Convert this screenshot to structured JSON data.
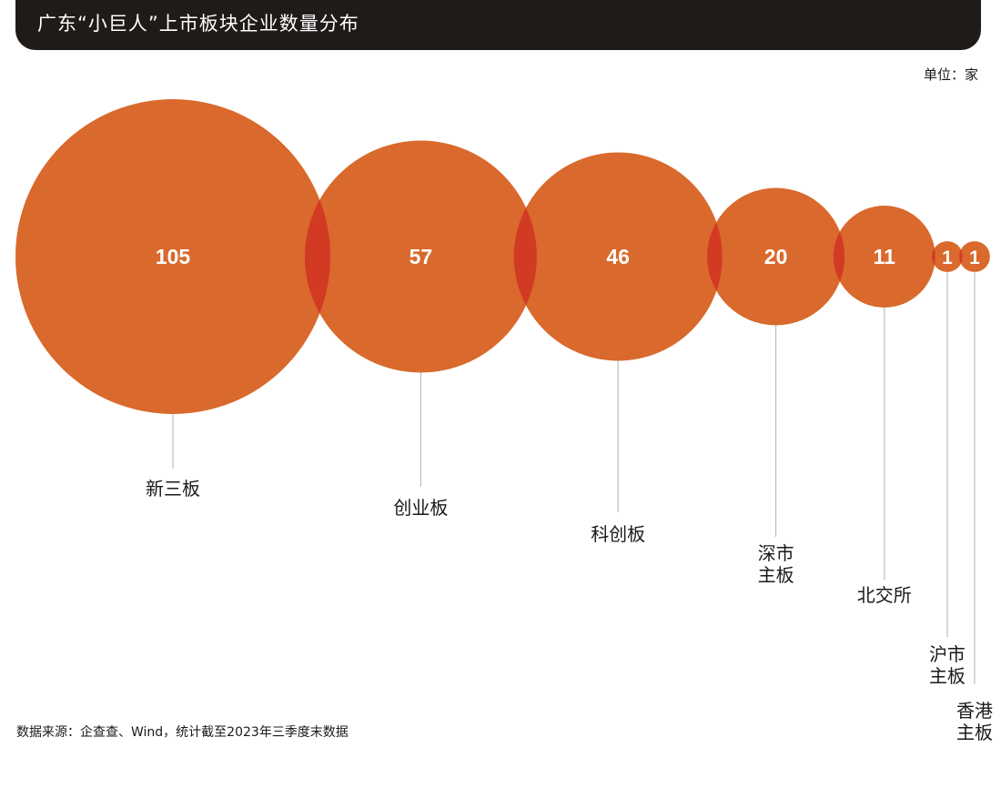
{
  "title": "广东“小巨人”上市板块企业数量分布",
  "unit": "单位：家",
  "source": "数据来源：企查查、Wind，统计截至2023年三季度末数据",
  "colors": {
    "bubble": "#d9692c",
    "overlap": "#d33a24",
    "leader_line": "#bdbdbd",
    "value_text": "#ffffff",
    "category_text": "#1a1a1a",
    "title_bar": "#1e1b19"
  },
  "chart_data": {
    "type": "bubble",
    "categories": [
      [
        "新三板"
      ],
      [
        "创业板"
      ],
      [
        "科创板"
      ],
      [
        "深市",
        "主板"
      ],
      [
        "北交所"
      ],
      [
        "沪市",
        "主板"
      ],
      [
        "香港",
        "主板"
      ]
    ],
    "values": [
      105,
      57,
      46,
      20,
      11,
      1,
      1
    ],
    "value_labels": [
      "105",
      "57",
      "46",
      "20",
      "11",
      "1",
      "1"
    ]
  }
}
